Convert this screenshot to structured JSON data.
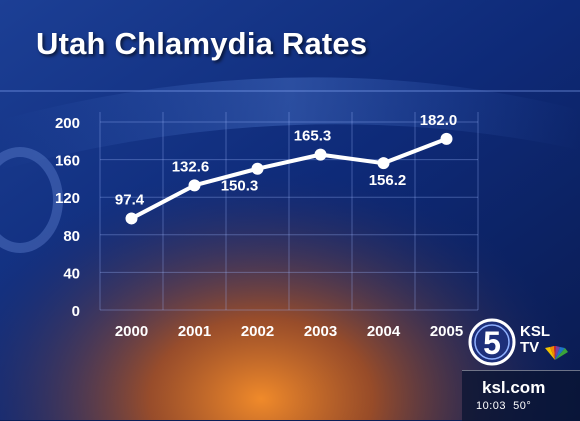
{
  "title": "Utah Chlamydia Rates",
  "chart_data": {
    "type": "line",
    "title": "Utah Chlamydia Rates",
    "xlabel": "",
    "ylabel": "",
    "x": [
      "2000",
      "2001",
      "2002",
      "2003",
      "2004",
      "2005"
    ],
    "series": [
      {
        "values": [
          97.4,
          132.6,
          150.3,
          165.3,
          156.2,
          182.0
        ],
        "labels": [
          "97.4",
          "132.6",
          "150.3",
          "165.3",
          "156.2",
          "182.0"
        ]
      }
    ],
    "yticks": [
      "0",
      "40",
      "80",
      "120",
      "160",
      "200"
    ],
    "ylim": [
      0,
      200
    ],
    "grid": true,
    "legend": "none",
    "line_color": "#ffffff"
  },
  "logo": {
    "channel_number": "5",
    "station": "KSL",
    "station_suffix": "TV",
    "website": "ksl.com",
    "time": "10:03",
    "temperature": "50°"
  }
}
